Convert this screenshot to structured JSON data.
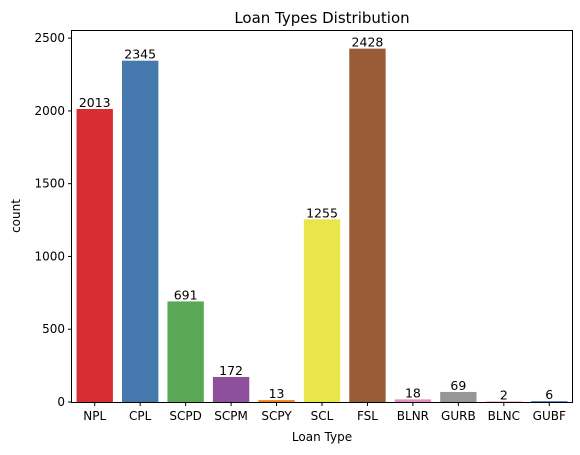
{
  "chart_data": {
    "type": "bar",
    "title": "Loan Types Distribution",
    "xlabel": "Loan Type",
    "ylabel": "count",
    "categories": [
      "NPL",
      "CPL",
      "SCPD",
      "SCPM",
      "SCPY",
      "SCL",
      "FSL",
      "BLNR",
      "GURB",
      "BLNC",
      "GUBF"
    ],
    "values": [
      2013,
      2345,
      691,
      172,
      13,
      1255,
      2428,
      18,
      69,
      2,
      6
    ],
    "colors": [
      "#d62e32",
      "#4578ad",
      "#59a855",
      "#8e509a",
      "#f57f15",
      "#e9e54a",
      "#9a5b37",
      "#e78cbc",
      "#969696",
      "#d62e32",
      "#4578ad"
    ],
    "yticks": [
      0,
      500,
      1000,
      1500,
      2000,
      2500
    ],
    "ylim": [
      0,
      2549
    ],
    "grid": false,
    "legend": "none"
  }
}
